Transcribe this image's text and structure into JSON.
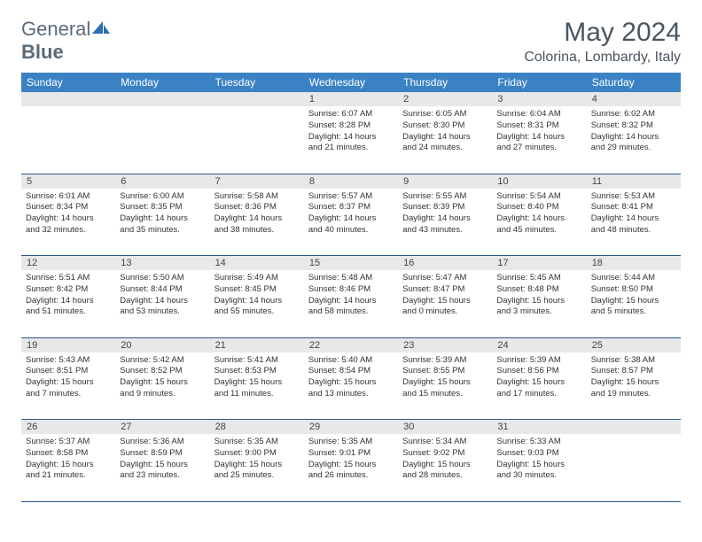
{
  "logo": {
    "part1": "General",
    "part2": "Blue"
  },
  "title": "May 2024",
  "location": "Colorina, Lombardy, Italy",
  "colors": {
    "header_bg": "#3b82c4",
    "header_text": "#ffffff",
    "daynum_bg": "#e8e8e8",
    "divider": "#285a8a",
    "logo_gray": "#5a6b7a",
    "logo_blue": "#2b6fb0"
  },
  "dayNames": [
    "Sunday",
    "Monday",
    "Tuesday",
    "Wednesday",
    "Thursday",
    "Friday",
    "Saturday"
  ],
  "weeks": [
    [
      {
        "num": "",
        "lines": []
      },
      {
        "num": "",
        "lines": []
      },
      {
        "num": "",
        "lines": []
      },
      {
        "num": "1",
        "lines": [
          "Sunrise: 6:07 AM",
          "Sunset: 8:28 PM",
          "Daylight: 14 hours",
          "and 21 minutes."
        ]
      },
      {
        "num": "2",
        "lines": [
          "Sunrise: 6:05 AM",
          "Sunset: 8:30 PM",
          "Daylight: 14 hours",
          "and 24 minutes."
        ]
      },
      {
        "num": "3",
        "lines": [
          "Sunrise: 6:04 AM",
          "Sunset: 8:31 PM",
          "Daylight: 14 hours",
          "and 27 minutes."
        ]
      },
      {
        "num": "4",
        "lines": [
          "Sunrise: 6:02 AM",
          "Sunset: 8:32 PM",
          "Daylight: 14 hours",
          "and 29 minutes."
        ]
      }
    ],
    [
      {
        "num": "5",
        "lines": [
          "Sunrise: 6:01 AM",
          "Sunset: 8:34 PM",
          "Daylight: 14 hours",
          "and 32 minutes."
        ]
      },
      {
        "num": "6",
        "lines": [
          "Sunrise: 6:00 AM",
          "Sunset: 8:35 PM",
          "Daylight: 14 hours",
          "and 35 minutes."
        ]
      },
      {
        "num": "7",
        "lines": [
          "Sunrise: 5:58 AM",
          "Sunset: 8:36 PM",
          "Daylight: 14 hours",
          "and 38 minutes."
        ]
      },
      {
        "num": "8",
        "lines": [
          "Sunrise: 5:57 AM",
          "Sunset: 8:37 PM",
          "Daylight: 14 hours",
          "and 40 minutes."
        ]
      },
      {
        "num": "9",
        "lines": [
          "Sunrise: 5:55 AM",
          "Sunset: 8:39 PM",
          "Daylight: 14 hours",
          "and 43 minutes."
        ]
      },
      {
        "num": "10",
        "lines": [
          "Sunrise: 5:54 AM",
          "Sunset: 8:40 PM",
          "Daylight: 14 hours",
          "and 45 minutes."
        ]
      },
      {
        "num": "11",
        "lines": [
          "Sunrise: 5:53 AM",
          "Sunset: 8:41 PM",
          "Daylight: 14 hours",
          "and 48 minutes."
        ]
      }
    ],
    [
      {
        "num": "12",
        "lines": [
          "Sunrise: 5:51 AM",
          "Sunset: 8:42 PM",
          "Daylight: 14 hours",
          "and 51 minutes."
        ]
      },
      {
        "num": "13",
        "lines": [
          "Sunrise: 5:50 AM",
          "Sunset: 8:44 PM",
          "Daylight: 14 hours",
          "and 53 minutes."
        ]
      },
      {
        "num": "14",
        "lines": [
          "Sunrise: 5:49 AM",
          "Sunset: 8:45 PM",
          "Daylight: 14 hours",
          "and 55 minutes."
        ]
      },
      {
        "num": "15",
        "lines": [
          "Sunrise: 5:48 AM",
          "Sunset: 8:46 PM",
          "Daylight: 14 hours",
          "and 58 minutes."
        ]
      },
      {
        "num": "16",
        "lines": [
          "Sunrise: 5:47 AM",
          "Sunset: 8:47 PM",
          "Daylight: 15 hours",
          "and 0 minutes."
        ]
      },
      {
        "num": "17",
        "lines": [
          "Sunrise: 5:45 AM",
          "Sunset: 8:48 PM",
          "Daylight: 15 hours",
          "and 3 minutes."
        ]
      },
      {
        "num": "18",
        "lines": [
          "Sunrise: 5:44 AM",
          "Sunset: 8:50 PM",
          "Daylight: 15 hours",
          "and 5 minutes."
        ]
      }
    ],
    [
      {
        "num": "19",
        "lines": [
          "Sunrise: 5:43 AM",
          "Sunset: 8:51 PM",
          "Daylight: 15 hours",
          "and 7 minutes."
        ]
      },
      {
        "num": "20",
        "lines": [
          "Sunrise: 5:42 AM",
          "Sunset: 8:52 PM",
          "Daylight: 15 hours",
          "and 9 minutes."
        ]
      },
      {
        "num": "21",
        "lines": [
          "Sunrise: 5:41 AM",
          "Sunset: 8:53 PM",
          "Daylight: 15 hours",
          "and 11 minutes."
        ]
      },
      {
        "num": "22",
        "lines": [
          "Sunrise: 5:40 AM",
          "Sunset: 8:54 PM",
          "Daylight: 15 hours",
          "and 13 minutes."
        ]
      },
      {
        "num": "23",
        "lines": [
          "Sunrise: 5:39 AM",
          "Sunset: 8:55 PM",
          "Daylight: 15 hours",
          "and 15 minutes."
        ]
      },
      {
        "num": "24",
        "lines": [
          "Sunrise: 5:39 AM",
          "Sunset: 8:56 PM",
          "Daylight: 15 hours",
          "and 17 minutes."
        ]
      },
      {
        "num": "25",
        "lines": [
          "Sunrise: 5:38 AM",
          "Sunset: 8:57 PM",
          "Daylight: 15 hours",
          "and 19 minutes."
        ]
      }
    ],
    [
      {
        "num": "26",
        "lines": [
          "Sunrise: 5:37 AM",
          "Sunset: 8:58 PM",
          "Daylight: 15 hours",
          "and 21 minutes."
        ]
      },
      {
        "num": "27",
        "lines": [
          "Sunrise: 5:36 AM",
          "Sunset: 8:59 PM",
          "Daylight: 15 hours",
          "and 23 minutes."
        ]
      },
      {
        "num": "28",
        "lines": [
          "Sunrise: 5:35 AM",
          "Sunset: 9:00 PM",
          "Daylight: 15 hours",
          "and 25 minutes."
        ]
      },
      {
        "num": "29",
        "lines": [
          "Sunrise: 5:35 AM",
          "Sunset: 9:01 PM",
          "Daylight: 15 hours",
          "and 26 minutes."
        ]
      },
      {
        "num": "30",
        "lines": [
          "Sunrise: 5:34 AM",
          "Sunset: 9:02 PM",
          "Daylight: 15 hours",
          "and 28 minutes."
        ]
      },
      {
        "num": "31",
        "lines": [
          "Sunrise: 5:33 AM",
          "Sunset: 9:03 PM",
          "Daylight: 15 hours",
          "and 30 minutes."
        ]
      },
      {
        "num": "",
        "lines": []
      }
    ]
  ]
}
